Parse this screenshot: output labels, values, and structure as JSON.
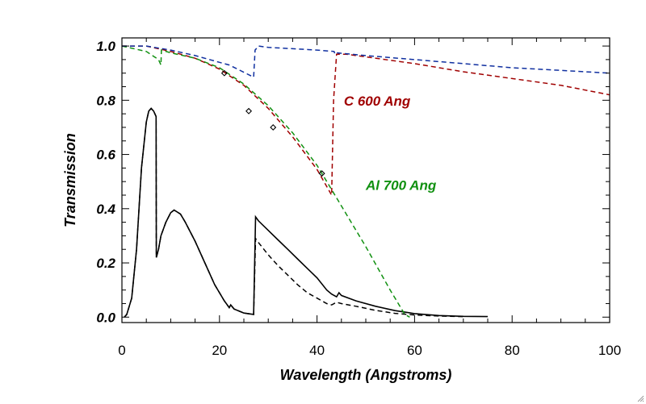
{
  "chart_data": {
    "type": "line",
    "xlabel": "Wavelength (Angstroms)",
    "ylabel": "Transmission",
    "xlim": [
      0,
      100
    ],
    "ylim": [
      -0.02,
      1.03
    ],
    "xticks": [
      0,
      20,
      40,
      60,
      80,
      100
    ],
    "xtick_labels": [
      "0",
      "20",
      "40",
      "60",
      "80",
      "100"
    ],
    "yticks": [
      0.0,
      0.2,
      0.4,
      0.6,
      0.8,
      1.0
    ],
    "ytick_labels": [
      "0.0",
      "0.2",
      "0.4",
      "0.6",
      "0.8",
      "1.0"
    ],
    "grid": false,
    "colors": {
      "c_filter": "#a00000",
      "al_filter": "#109010",
      "blue": "#1030a0",
      "black": "#000000"
    },
    "annotations": [
      {
        "text": "C 600 Ang",
        "x": 45.5,
        "y": 0.78,
        "color": "#a00000"
      },
      {
        "text": "Al 700 Ang",
        "x": 50,
        "y": 0.47,
        "color": "#109010"
      }
    ],
    "series": [
      {
        "style": "solid",
        "color": "#000000",
        "points": [
          [
            0.5,
            0
          ],
          [
            1,
            0.01
          ],
          [
            2,
            0.07
          ],
          [
            3,
            0.25
          ],
          [
            4,
            0.55
          ],
          [
            5,
            0.72
          ],
          [
            5.5,
            0.76
          ],
          [
            6,
            0.77
          ],
          [
            6.5,
            0.76
          ],
          [
            7,
            0.74
          ],
          [
            7.05,
            0.22
          ],
          [
            7.5,
            0.25
          ],
          [
            8,
            0.3
          ],
          [
            9,
            0.35
          ],
          [
            10,
            0.385
          ],
          [
            10.7,
            0.395
          ],
          [
            12,
            0.38
          ],
          [
            13,
            0.35
          ],
          [
            15,
            0.28
          ],
          [
            17,
            0.2
          ],
          [
            19,
            0.12
          ],
          [
            21,
            0.06
          ],
          [
            22,
            0.035
          ],
          [
            22.3,
            0.045
          ],
          [
            23,
            0.03
          ],
          [
            25,
            0.015
          ],
          [
            27,
            0.01
          ],
          [
            27.4,
            0.37
          ],
          [
            28,
            0.355
          ],
          [
            30,
            0.32
          ],
          [
            32,
            0.285
          ],
          [
            34,
            0.25
          ],
          [
            36,
            0.215
          ],
          [
            38,
            0.18
          ],
          [
            40,
            0.145
          ],
          [
            42,
            0.1
          ],
          [
            43,
            0.085
          ],
          [
            44,
            0.075
          ],
          [
            44.5,
            0.09
          ],
          [
            45,
            0.08
          ],
          [
            48,
            0.06
          ],
          [
            52,
            0.04
          ],
          [
            56,
            0.024
          ],
          [
            60,
            0.013
          ],
          [
            65,
            0.006
          ],
          [
            70,
            0.003
          ],
          [
            75,
            0.002
          ]
        ]
      },
      {
        "style": "dashed",
        "color": "#000000",
        "points": [
          [
            0.5,
            0
          ],
          [
            1,
            0.01
          ],
          [
            2,
            0.07
          ],
          [
            3,
            0.25
          ],
          [
            4,
            0.55
          ],
          [
            5,
            0.72
          ],
          [
            5.5,
            0.76
          ],
          [
            6,
            0.77
          ],
          [
            6.5,
            0.76
          ],
          [
            7,
            0.74
          ],
          [
            7.05,
            0.22
          ],
          [
            7.5,
            0.25
          ],
          [
            8,
            0.3
          ],
          [
            9,
            0.35
          ],
          [
            10,
            0.385
          ],
          [
            10.7,
            0.395
          ],
          [
            12,
            0.38
          ],
          [
            13,
            0.35
          ],
          [
            15,
            0.28
          ],
          [
            17,
            0.2
          ],
          [
            19,
            0.12
          ],
          [
            21,
            0.06
          ],
          [
            22,
            0.035
          ],
          [
            22.3,
            0.045
          ],
          [
            23,
            0.03
          ],
          [
            25,
            0.015
          ],
          [
            27,
            0.01
          ],
          [
            27.4,
            0.29
          ],
          [
            28,
            0.275
          ],
          [
            30,
            0.23
          ],
          [
            32,
            0.19
          ],
          [
            34,
            0.155
          ],
          [
            36,
            0.12
          ],
          [
            38,
            0.09
          ],
          [
            40,
            0.07
          ],
          [
            42,
            0.05
          ],
          [
            43,
            0.045
          ],
          [
            44,
            0.055
          ],
          [
            45,
            0.05
          ],
          [
            48,
            0.04
          ],
          [
            52,
            0.025
          ],
          [
            56,
            0.014
          ],
          [
            60,
            0.008
          ],
          [
            65,
            0.004
          ],
          [
            70,
            0.002
          ]
        ]
      },
      {
        "style": "dashed",
        "color": "#a00000",
        "points": [
          [
            0,
            1.0
          ],
          [
            5,
            1.0
          ],
          [
            10,
            0.98
          ],
          [
            15,
            0.955
          ],
          [
            20,
            0.915
          ],
          [
            25,
            0.855
          ],
          [
            30,
            0.77
          ],
          [
            35,
            0.665
          ],
          [
            40,
            0.545
          ],
          [
            43,
            0.45
          ],
          [
            43.4,
            0.8
          ],
          [
            44,
            0.97
          ],
          [
            46,
            0.97
          ],
          [
            50,
            0.96
          ],
          [
            60,
            0.935
          ],
          [
            70,
            0.905
          ],
          [
            80,
            0.88
          ],
          [
            90,
            0.855
          ],
          [
            100,
            0.82
          ]
        ]
      },
      {
        "style": "dashed",
        "color": "#109010",
        "points": [
          [
            0,
            1.0
          ],
          [
            5,
            0.98
          ],
          [
            7.5,
            0.95
          ],
          [
            8,
            0.93
          ],
          [
            8.1,
            0.985
          ],
          [
            10,
            0.975
          ],
          [
            15,
            0.955
          ],
          [
            20,
            0.92
          ],
          [
            25,
            0.86
          ],
          [
            30,
            0.78
          ],
          [
            35,
            0.68
          ],
          [
            40,
            0.56
          ],
          [
            45,
            0.41
          ],
          [
            50,
            0.26
          ],
          [
            55,
            0.1
          ],
          [
            58,
            0.01
          ],
          [
            59,
            0.0
          ]
        ]
      },
      {
        "style": "dashed",
        "color": "#1030a0",
        "points": [
          [
            0,
            1.0
          ],
          [
            5,
            1.0
          ],
          [
            10,
            0.985
          ],
          [
            15,
            0.965
          ],
          [
            20,
            0.94
          ],
          [
            22,
            0.93
          ],
          [
            27,
            0.885
          ],
          [
            27.3,
            0.985
          ],
          [
            28,
            1.0
          ],
          [
            30,
            0.995
          ],
          [
            35,
            0.99
          ],
          [
            40,
            0.985
          ],
          [
            43.5,
            0.98
          ],
          [
            43.7,
            0.97
          ],
          [
            44,
            0.975
          ],
          [
            50,
            0.965
          ],
          [
            60,
            0.95
          ],
          [
            70,
            0.935
          ],
          [
            80,
            0.92
          ],
          [
            90,
            0.91
          ],
          [
            100,
            0.9
          ]
        ]
      }
    ],
    "markers": [
      [
        21,
        0.9
      ],
      [
        26,
        0.76
      ],
      [
        31,
        0.7
      ],
      [
        41,
        0.53
      ]
    ]
  }
}
